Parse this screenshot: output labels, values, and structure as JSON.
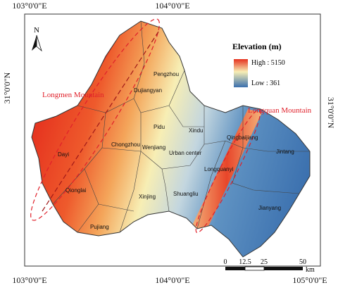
{
  "map": {
    "coords": {
      "top": [
        "103°0'0\"E",
        "104°0'0\"E"
      ],
      "bottom": [
        "103°0'0\"E",
        "104°0'0\"E",
        "105°0'0\"E"
      ],
      "left": "31°0'0\"N",
      "right": "31°0'0\"N"
    },
    "north": "N",
    "legend": {
      "title": "Elevation (m)",
      "high": "High : 5150",
      "low": "Low : 361"
    },
    "annotations": [
      "Longmen Mountain",
      "Longquan Mountain"
    ],
    "districts": [
      "Pengzhou",
      "Dujiangyan",
      "Pidu",
      "Xindu",
      "Qingbaijiang",
      "Chongzhou",
      "Wenjiang",
      "Urban center",
      "Jintang",
      "Dayi",
      "Longquanyi",
      "Qionglai",
      "Xinjing",
      "Shuangliu",
      "Jianyang",
      "Pujiang"
    ],
    "scale": {
      "labels": [
        "0",
        "12.5",
        "25",
        "50"
      ],
      "unit": "km"
    }
  }
}
